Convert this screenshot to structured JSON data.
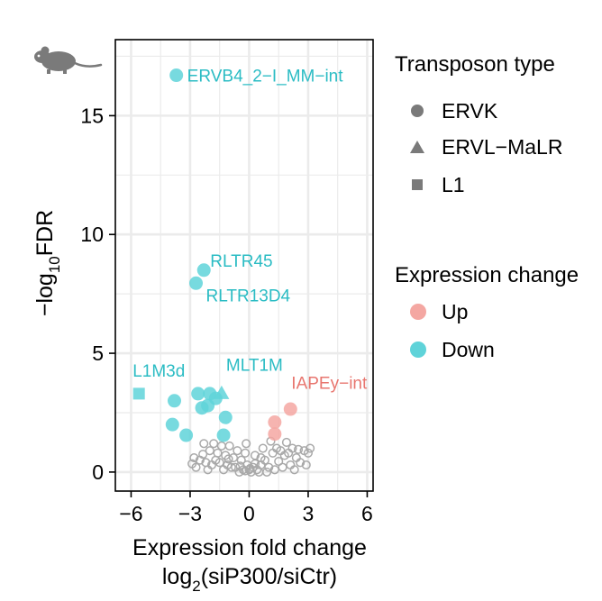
{
  "chart_data": {
    "type": "scatter",
    "xlabel_main": "Expression fold change",
    "xlabel_sub": {
      "prefix": "log",
      "subscript": "2",
      "suffix": "(siP300/siCtr)"
    },
    "ylabel": {
      "prefix": "−log",
      "subscript": "10",
      "suffix": "FDR"
    },
    "xlim": [
      -6.8,
      6.3
    ],
    "ylim": [
      -0.8,
      18.2
    ],
    "xticks": [
      -6,
      -3,
      0,
      3,
      6
    ],
    "xtick_labels": [
      "−6",
      "−3",
      "0",
      "3",
      "6"
    ],
    "yticks": [
      0,
      5,
      10,
      15
    ],
    "ytick_labels": [
      "0",
      "5",
      "10",
      "15"
    ],
    "grid": true,
    "legend_position": "right",
    "colors": {
      "up": "#f4a7a2",
      "down": "#5fd3d9",
      "ns": "#a9a9a9",
      "grid": "#ebebeb",
      "icon": "#7a7a7a"
    },
    "icon": "mouse-icon",
    "legend": {
      "shape_title": "Transposon type",
      "shapes": [
        {
          "label": "ERVK",
          "shape": "circle"
        },
        {
          "label": "ERVL−MaLR",
          "shape": "triangle"
        },
        {
          "label": "L1",
          "shape": "square"
        }
      ],
      "color_title": "Expression change",
      "colors": [
        {
          "label": "Up",
          "color": "#f4a7a2"
        },
        {
          "label": "Down",
          "color": "#5fd3d9"
        }
      ]
    },
    "labels": [
      {
        "text": "ERVB4_2−I_MM−int",
        "x": -3.7,
        "y": 16.7,
        "color": "#2bbcc4"
      },
      {
        "text": "RLTR45",
        "x": -2.3,
        "y": 8.5,
        "color": "#2bbcc4"
      },
      {
        "text": "RLTR13D4",
        "x": -2.7,
        "y": 7.95,
        "color": "#2bbcc4"
      },
      {
        "text": "L1M3d",
        "x": -5.6,
        "y": 3.3,
        "color": "#2bbcc4"
      },
      {
        "text": "MLT1M",
        "x": -1.4,
        "y": 3.4,
        "color": "#2bbcc4"
      },
      {
        "text": "IAPEy−int",
        "x": 2.1,
        "y": 2.7,
        "color": "#e8766f"
      }
    ],
    "significant_points": [
      {
        "x": -3.7,
        "y": 16.7,
        "group": "down",
        "shape": "circle"
      },
      {
        "x": -2.3,
        "y": 8.5,
        "group": "down",
        "shape": "circle"
      },
      {
        "x": -2.7,
        "y": 7.95,
        "group": "down",
        "shape": "circle"
      },
      {
        "x": -5.6,
        "y": 3.3,
        "group": "down",
        "shape": "square"
      },
      {
        "x": -1.4,
        "y": 3.3,
        "group": "down",
        "shape": "triangle"
      },
      {
        "x": -3.8,
        "y": 3.0,
        "group": "down",
        "shape": "circle"
      },
      {
        "x": -2.6,
        "y": 3.3,
        "group": "down",
        "shape": "circle"
      },
      {
        "x": -2.0,
        "y": 3.3,
        "group": "down",
        "shape": "circle"
      },
      {
        "x": -2.4,
        "y": 2.7,
        "group": "down",
        "shape": "circle"
      },
      {
        "x": -2.1,
        "y": 2.8,
        "group": "down",
        "shape": "circle"
      },
      {
        "x": -1.7,
        "y": 3.1,
        "group": "down",
        "shape": "circle"
      },
      {
        "x": -1.2,
        "y": 2.3,
        "group": "down",
        "shape": "circle"
      },
      {
        "x": -3.9,
        "y": 2.0,
        "group": "down",
        "shape": "circle"
      },
      {
        "x": -3.2,
        "y": 1.55,
        "group": "down",
        "shape": "circle"
      },
      {
        "x": -1.3,
        "y": 1.55,
        "group": "down",
        "shape": "circle"
      },
      {
        "x": 2.1,
        "y": 2.65,
        "group": "up",
        "shape": "circle"
      },
      {
        "x": 1.3,
        "y": 2.1,
        "group": "up",
        "shape": "circle"
      },
      {
        "x": 1.3,
        "y": 1.6,
        "group": "up",
        "shape": "circle"
      }
    ],
    "ns_points": [
      [
        -2.3,
        1.2
      ],
      [
        -1.8,
        1.2
      ],
      [
        -1.4,
        1.1
      ],
      [
        -1.0,
        1.1
      ],
      [
        -0.6,
        0.9
      ],
      [
        -2.0,
        0.9
      ],
      [
        -1.6,
        0.8
      ],
      [
        -1.2,
        0.7
      ],
      [
        -0.8,
        0.6
      ],
      [
        -2.5,
        0.5
      ],
      [
        -2.2,
        0.4
      ],
      [
        -1.9,
        0.3
      ],
      [
        -1.5,
        0.4
      ],
      [
        -1.1,
        0.3
      ],
      [
        -0.7,
        0.2
      ],
      [
        -0.4,
        0.5
      ],
      [
        -0.3,
        0.1
      ],
      [
        -0.1,
        0.3
      ],
      [
        0.0,
        0.1
      ],
      [
        0.2,
        0.2
      ],
      [
        0.4,
        0.1
      ],
      [
        0.6,
        0.3
      ],
      [
        0.8,
        0.5
      ],
      [
        1.0,
        0.2
      ],
      [
        1.2,
        0.8
      ],
      [
        1.4,
        1.0
      ],
      [
        1.6,
        0.9
      ],
      [
        1.8,
        0.7
      ],
      [
        2.0,
        0.8
      ],
      [
        2.2,
        1.0
      ],
      [
        2.4,
        0.6
      ],
      [
        2.6,
        0.4
      ],
      [
        2.8,
        0.9
      ],
      [
        3.0,
        0.8
      ],
      [
        3.1,
        1.0
      ],
      [
        2.9,
        0.3
      ],
      [
        1.1,
        1.3
      ],
      [
        0.7,
        1.0
      ],
      [
        0.3,
        0.7
      ],
      [
        -0.2,
        0.8
      ],
      [
        -2.7,
        0.2
      ],
      [
        -2.8,
        0.6
      ],
      [
        -1.3,
        0.1
      ],
      [
        -0.9,
        0.2
      ],
      [
        -0.5,
        0.0
      ],
      [
        0.1,
        0.0
      ],
      [
        0.5,
        0.0
      ],
      [
        0.9,
        0.0
      ],
      [
        1.3,
        0.1
      ],
      [
        1.7,
        0.2
      ],
      [
        2.1,
        0.3
      ],
      [
        2.3,
        0.1
      ],
      [
        -1.7,
        0.5
      ],
      [
        -2.1,
        0.1
      ],
      [
        -0.2,
        0.05
      ],
      [
        0.05,
        0.15
      ],
      [
        0.3,
        0.35
      ],
      [
        -0.45,
        0.25
      ],
      [
        1.5,
        0.45
      ],
      [
        -1.05,
        0.55
      ],
      [
        -2.35,
        0.75
      ],
      [
        1.9,
        1.25
      ],
      [
        -0.15,
        1.2
      ],
      [
        0.6,
        0.6
      ],
      [
        2.5,
        0.95
      ],
      [
        -2.9,
        0.35
      ]
    ]
  }
}
